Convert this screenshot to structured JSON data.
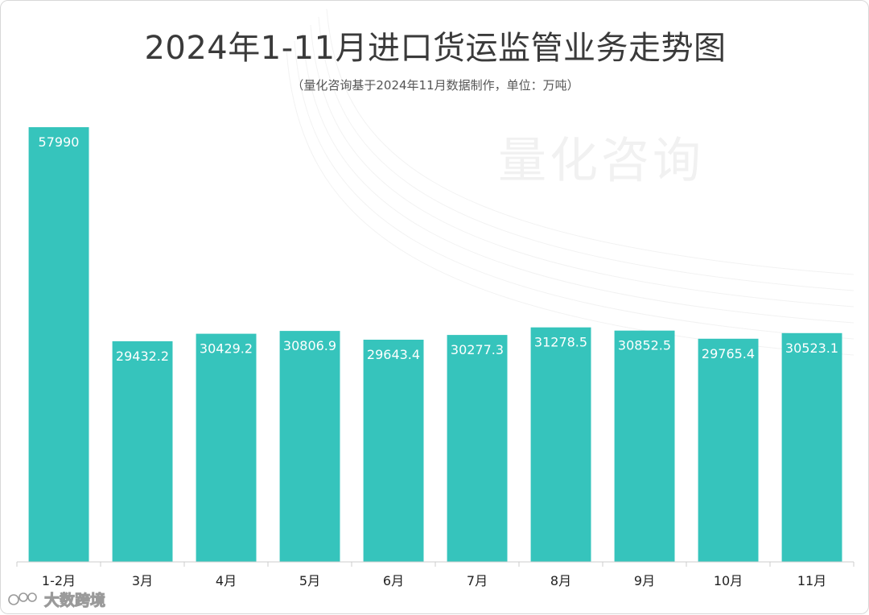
{
  "title": "2024年1-11月进口货运监管业务走势图",
  "subtitle": "（量化咨询基于2024年11月数据制作，单位：万吨）",
  "watermark": "量化咨询",
  "footer_logo": "大数跨境",
  "colors": {
    "bar": "#36c4bc",
    "axis": "#cccccc",
    "text": "#222222"
  },
  "chart_data": {
    "type": "bar",
    "categories": [
      "1-2月",
      "3月",
      "4月",
      "5月",
      "6月",
      "7月",
      "8月",
      "9月",
      "10月",
      "11月"
    ],
    "values": [
      57990,
      29432.2,
      30429.2,
      30806.9,
      29643.4,
      30277.3,
      31278.5,
      30852.5,
      29765.4,
      30523.1
    ],
    "value_labels": [
      "57990",
      "29432.2",
      "30429.2",
      "30806.9",
      "29643.4",
      "30277.3",
      "31278.5",
      "30852.5",
      "29765.4",
      "30523.1"
    ],
    "title": "2024年1-11月进口货运监管业务走势图",
    "xlabel": "",
    "ylabel": "",
    "ylim": [
      0,
      60000
    ],
    "grid": false,
    "legend": "none"
  }
}
